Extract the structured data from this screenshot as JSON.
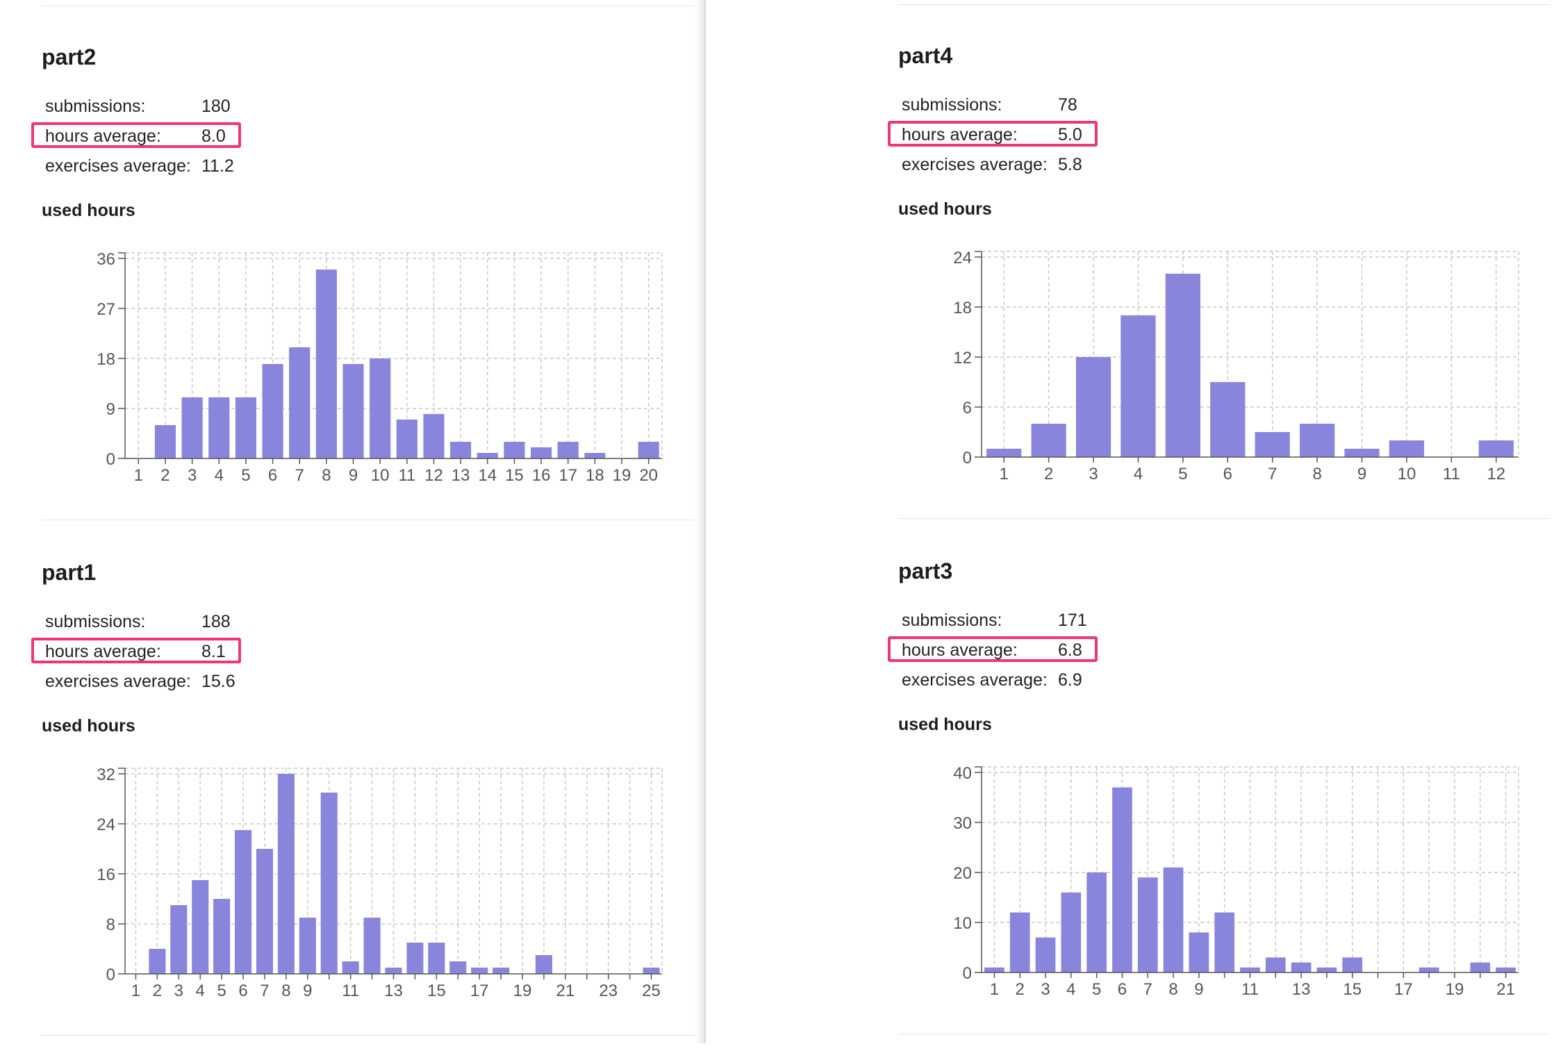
{
  "labels": {
    "submissions": "submissions:",
    "hours_average": "hours average:",
    "exercises_average": "exercises average:",
    "used_hours": "used hours"
  },
  "colors": {
    "bar": "#8a85dc",
    "highlight": "#f0366f",
    "grid": "#c8c8c8"
  },
  "parts": [
    {
      "title": "part2",
      "submissions": "180",
      "hours_average": "8.0",
      "exercises_average": "11.2"
    },
    {
      "title": "part4",
      "submissions": "78",
      "hours_average": "5.0",
      "exercises_average": "5.8"
    },
    {
      "title": "part1",
      "submissions": "188",
      "hours_average": "8.1",
      "exercises_average": "15.6"
    },
    {
      "title": "part3",
      "submissions": "171",
      "hours_average": "6.8",
      "exercises_average": "6.9"
    }
  ],
  "chart_data": [
    {
      "type": "bar",
      "title": "used hours",
      "part": "part2",
      "categories": [
        1,
        2,
        3,
        4,
        5,
        6,
        7,
        8,
        9,
        10,
        11,
        12,
        13,
        14,
        15,
        16,
        17,
        18,
        19,
        20
      ],
      "tick_labels": [
        "1",
        "2",
        "3",
        "4",
        "5",
        "6",
        "7",
        "8",
        "9",
        "10",
        "11",
        "12",
        "13",
        "14",
        "15",
        "16",
        "17",
        "18",
        "19",
        "20"
      ],
      "values": [
        0,
        6,
        11,
        11,
        11,
        17,
        20,
        34,
        17,
        18,
        7,
        8,
        3,
        1,
        3,
        2,
        3,
        1,
        0,
        3
      ],
      "yticks": [
        0,
        9,
        18,
        27,
        36
      ],
      "ylim": [
        0,
        36
      ],
      "grid": true
    },
    {
      "type": "bar",
      "title": "used hours",
      "part": "part4",
      "categories": [
        1,
        2,
        3,
        4,
        5,
        6,
        7,
        8,
        9,
        10,
        11,
        12
      ],
      "tick_labels": [
        "1",
        "2",
        "3",
        "4",
        "5",
        "6",
        "7",
        "8",
        "9",
        "10",
        "11",
        "12"
      ],
      "values": [
        1,
        4,
        12,
        17,
        22,
        9,
        3,
        4,
        1,
        2,
        0,
        2
      ],
      "yticks": [
        0,
        6,
        12,
        18,
        24
      ],
      "ylim": [
        0,
        24
      ],
      "grid": true
    },
    {
      "type": "bar",
      "title": "used hours",
      "part": "part1",
      "categories": [
        1,
        2,
        3,
        4,
        5,
        6,
        7,
        8,
        9,
        10,
        11,
        12,
        13,
        14,
        15,
        16,
        17,
        18,
        19,
        20,
        21,
        22,
        23,
        24,
        25
      ],
      "tick_labels": [
        "1",
        "2",
        "3",
        "4",
        "5",
        "6",
        "7",
        "8",
        "9",
        "",
        "11",
        "",
        "13",
        "",
        "15",
        "",
        "17",
        "",
        "19",
        "",
        "21",
        "",
        "23",
        "",
        "25"
      ],
      "values": [
        0,
        4,
        11,
        15,
        12,
        23,
        20,
        32,
        9,
        29,
        2,
        9,
        1,
        5,
        5,
        2,
        1,
        1,
        0,
        3,
        0,
        0,
        0,
        0,
        1
      ],
      "yticks": [
        0,
        8,
        16,
        24,
        32
      ],
      "ylim": [
        0,
        32
      ],
      "grid": true
    },
    {
      "type": "bar",
      "title": "used hours",
      "part": "part3",
      "categories": [
        1,
        2,
        3,
        4,
        5,
        6,
        7,
        8,
        9,
        10,
        11,
        12,
        13,
        14,
        15,
        16,
        17,
        18,
        19,
        20,
        21
      ],
      "tick_labels": [
        "1",
        "2",
        "3",
        "4",
        "5",
        "6",
        "7",
        "8",
        "9",
        "",
        "11",
        "",
        "13",
        "",
        "15",
        "",
        "17",
        "",
        "19",
        "",
        "21"
      ],
      "values": [
        1,
        12,
        7,
        16,
        20,
        37,
        19,
        21,
        8,
        12,
        1,
        3,
        2,
        1,
        3,
        0,
        0,
        1,
        0,
        2,
        1
      ],
      "yticks": [
        0,
        10,
        20,
        30,
        40
      ],
      "ylim": [
        0,
        40
      ],
      "grid": true
    }
  ]
}
